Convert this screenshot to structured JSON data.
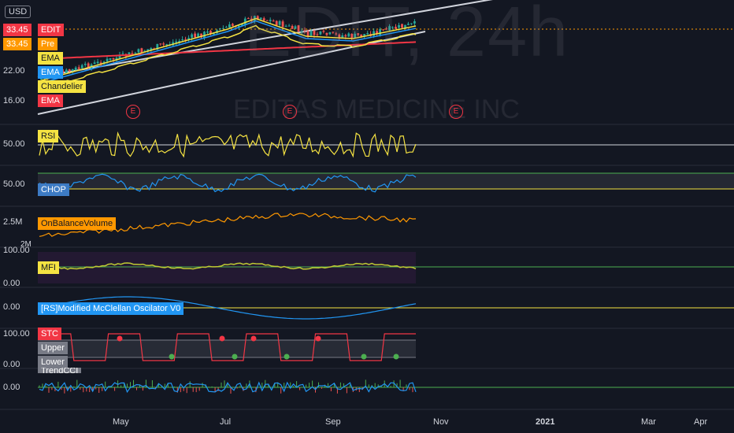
{
  "currency_button": "USD",
  "watermark": {
    "symbol": "EDIT, 24h",
    "name": "EDITAS MEDICINE INC"
  },
  "price_tags": {
    "edit_price": "33.45",
    "edit_label": "EDIT",
    "pre_price": "33.45",
    "pre_label": "Pre"
  },
  "price_axis": {
    "p22": "22.00",
    "p16": "16.00"
  },
  "main_legend": [
    "EMA",
    "EMA",
    "Chandelier",
    "EMA"
  ],
  "earnings_marker": "E",
  "panes": {
    "rsi": {
      "label": "RSI",
      "value": "50.00"
    },
    "chop": {
      "label": "CHOP",
      "value": "50.00"
    },
    "obv": {
      "label": "OnBalanceVolume",
      "value": "2.5M",
      "value2": "2M"
    },
    "mfi": {
      "label": "MFI",
      "value": "100.00",
      "value2": "0.00"
    },
    "mcclellan": {
      "label": "[RS]Modified McClellan Oscilator V0",
      "value": "0.00"
    },
    "stc": {
      "label": "STC",
      "upper": "Upper",
      "lower": "Lower",
      "value": "100.00",
      "value2": "0.00"
    },
    "trendcci": {
      "label": "TrendCCI",
      "value": "0.00"
    }
  },
  "time_axis": [
    "May",
    "Jul",
    "Sep",
    "Nov",
    "2021",
    "Mar",
    "Apr"
  ],
  "colors": {
    "background": "#131722",
    "up": "#26a69a",
    "down": "#ef5350",
    "ema_yellow": "#f5e342",
    "ema_blue": "#2196f3",
    "ema_red": "#f23645"
  }
}
